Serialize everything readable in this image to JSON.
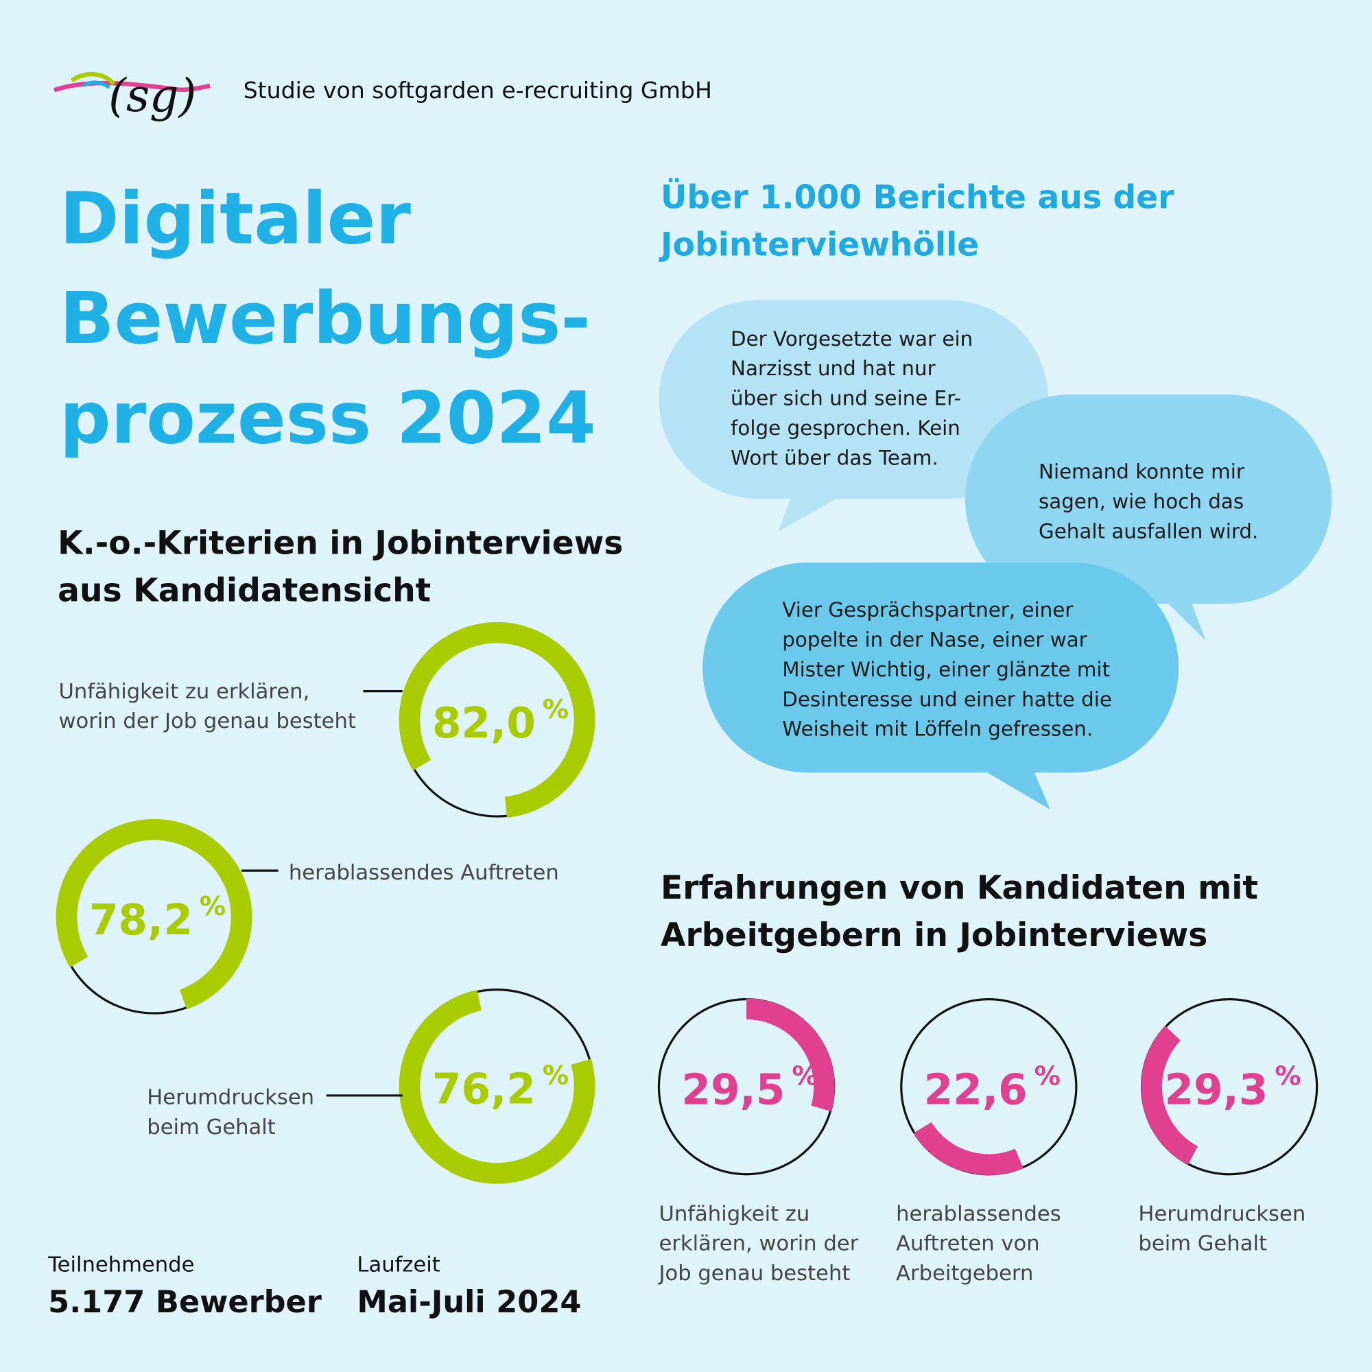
{
  "header": {
    "logo": "(sg)",
    "credit": "Studie von softgarden e-recruiting GmbH"
  },
  "title": [
    "Digitaler",
    "Bewerbungs-",
    "prozess 2024"
  ],
  "ko_criteria": {
    "heading": [
      "K.-o.-Kriterien in Jobinterviews",
      "aus Kandidatensicht"
    ],
    "unit": "%",
    "items": [
      {
        "label": [
          "Unfähigkeit zu erklären,",
          "worin der Job genau besteht"
        ],
        "value": 82.0,
        "value_label": "82,0"
      },
      {
        "label": [
          "herablassendes Auftreten"
        ],
        "value": 78.2,
        "value_label": "78,2"
      },
      {
        "label": [
          "Herumdrucksen",
          "beim Gehalt"
        ],
        "value": 76.2,
        "value_label": "76,2"
      }
    ]
  },
  "reports": {
    "heading": [
      "Über 1.000 Berichte aus der",
      "Jobinterviewhölle"
    ],
    "quotes": [
      [
        "Der Vorgesetzte war ein",
        "Narzisst und hat nur",
        "über sich und seine Er-",
        "folge gesprochen. Kein",
        "Wort über das Team."
      ],
      [
        "Niemand konnte mir",
        "sagen, wie hoch das",
        "Gehalt ausfallen wird."
      ],
      [
        "Vier Gesprächspartner, einer",
        "popelte in der Nase, einer war",
        "Mister Wichtig, einer glänzte mit",
        "Desinteresse und einer hatte die",
        "Weisheit mit Löffeln gefressen."
      ]
    ]
  },
  "experiences": {
    "heading": [
      "Erfahrungen von Kandidaten mit",
      "Arbeitgebern in Jobinterviews"
    ],
    "unit": "%",
    "items": [
      {
        "label": [
          "Unfähigkeit zu",
          "erklären, worin der",
          "Job genau besteht"
        ],
        "value": 29.5,
        "value_label": "29,5"
      },
      {
        "label": [
          "herablassendes",
          "Auftreten von",
          "Arbeitgebern"
        ],
        "value": 22.6,
        "value_label": "22,6"
      },
      {
        "label": [
          "Herumdrucksen",
          "beim Gehalt"
        ],
        "value": 29.3,
        "value_label": "29,3"
      }
    ]
  },
  "facts": [
    {
      "label": "Teilnehmende",
      "value": "5.177 Bewerber"
    },
    {
      "label": "Laufzeit",
      "value": "Mai-Juli 2024"
    }
  ]
}
